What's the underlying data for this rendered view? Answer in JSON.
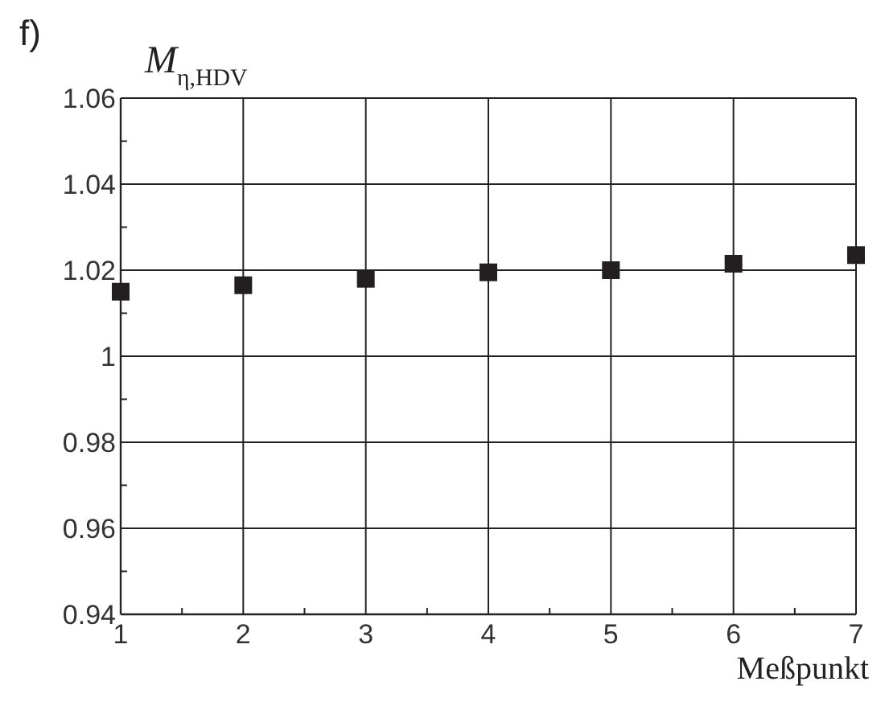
{
  "chart_data": {
    "type": "scatter",
    "title": "f)",
    "ylabel": "M$_{η,HDV}$",
    "xlabel": "Meßpunkt",
    "x": [
      1,
      2,
      3,
      4,
      5,
      6,
      7
    ],
    "series": [
      {
        "color": "#231f20",
        "values": [
          1.015,
          1.0165,
          1.018,
          1.0195,
          1.02,
          1.0215,
          1.0235
        ]
      }
    ],
    "xlim": [
      1,
      7
    ],
    "xticks": [
      1,
      2,
      3,
      4,
      5,
      6,
      7
    ],
    "ylim": [
      0.94,
      1.06
    ],
    "yticks": [
      {
        "value": 0.94,
        "label": "0.94"
      },
      {
        "value": 0.96,
        "label": "0.96"
      },
      {
        "value": 0.98,
        "label": "0.98"
      },
      {
        "value": 1,
        "label": "1"
      },
      {
        "value": 1.02,
        "label": "1.02"
      },
      {
        "value": 1.04,
        "label": "1.04"
      },
      {
        "value": 1.06,
        "label": "1.06"
      }
    ],
    "grid": true,
    "marker": "square"
  }
}
